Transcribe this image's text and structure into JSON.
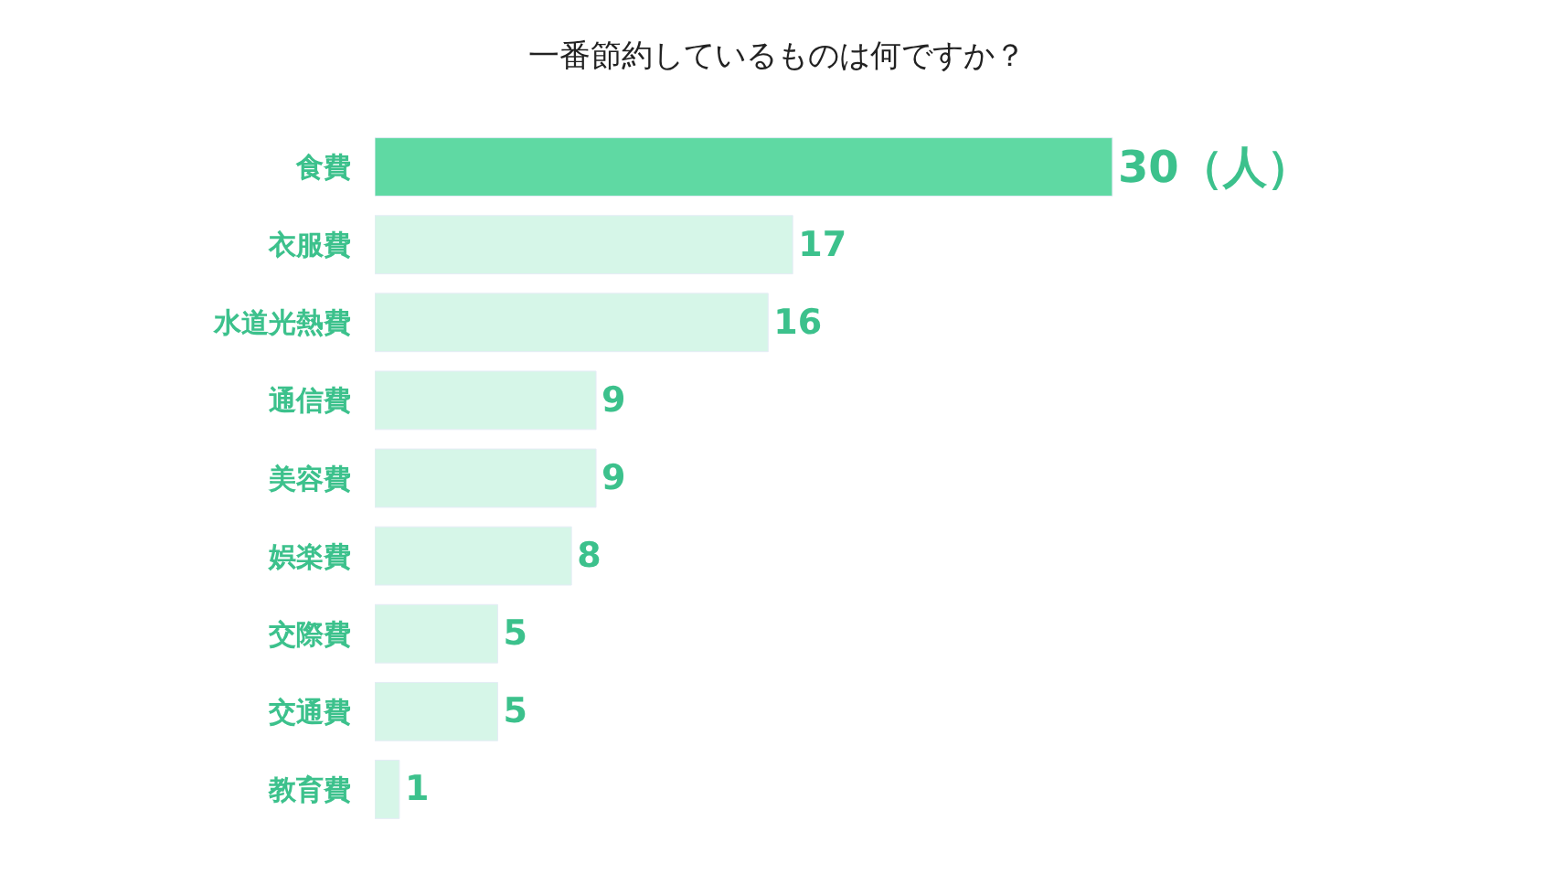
{
  "chart_data": {
    "type": "bar",
    "orientation": "horizontal",
    "title": "一番節約しているものは何ですか？",
    "categories": [
      "食費",
      "衣服費",
      "水道光熱費",
      "通信費",
      "美容費",
      "娯楽費",
      "交際費",
      "交通費",
      "教育費"
    ],
    "values": [
      30,
      17,
      16,
      9,
      9,
      8,
      5,
      5,
      1
    ],
    "value_labels": [
      "30（人）",
      "17",
      "16",
      "9",
      "9",
      "8",
      "5",
      "5",
      "1"
    ],
    "colors": [
      "#5fd9a3",
      "#d6f6e8",
      "#d6f6e8",
      "#d6f6e8",
      "#d6f6e8",
      "#d6f6e8",
      "#d6f6e8",
      "#d6f6e8",
      "#d6f6e8"
    ],
    "legend": false
  }
}
